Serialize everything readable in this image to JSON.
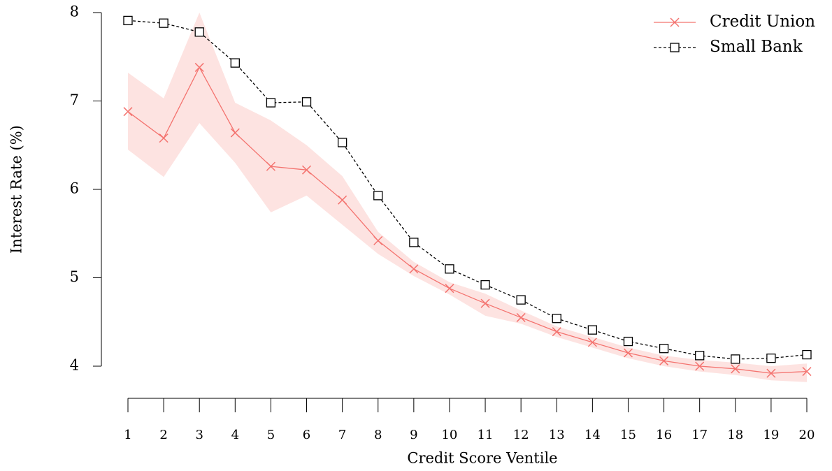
{
  "chart_data": {
    "type": "line",
    "x_label": "Credit Score Ventile",
    "y_label": "Interest Rate (%)",
    "x": [
      1,
      2,
      3,
      4,
      5,
      6,
      7,
      8,
      9,
      10,
      11,
      12,
      13,
      14,
      15,
      16,
      17,
      18,
      19,
      20
    ],
    "xlim": [
      1,
      20
    ],
    "xticks": [
      1,
      2,
      3,
      4,
      5,
      6,
      7,
      8,
      9,
      10,
      11,
      12,
      13,
      14,
      15,
      16,
      17,
      18,
      19,
      20
    ],
    "ylim": [
      4,
      8
    ],
    "yticks": [
      4,
      5,
      6,
      7,
      8
    ],
    "legend": "top-right",
    "series": [
      {
        "name": "Credit Union",
        "color": "#f4736f",
        "band_color": "#fde3e1",
        "marker": "x",
        "dash": false,
        "values": [
          6.88,
          6.58,
          7.38,
          6.64,
          6.26,
          6.22,
          5.88,
          5.42,
          5.1,
          4.88,
          4.71,
          4.55,
          4.39,
          4.27,
          4.15,
          4.06,
          4.0,
          3.97,
          3.92,
          3.94
        ],
        "upper": [
          7.32,
          7.03,
          8.0,
          6.98,
          6.78,
          6.5,
          6.15,
          5.52,
          5.18,
          4.95,
          4.82,
          4.63,
          4.45,
          4.33,
          4.21,
          4.12,
          4.07,
          4.04,
          4.0,
          4.03
        ],
        "lower": [
          6.45,
          6.14,
          6.75,
          6.3,
          5.74,
          5.93,
          5.6,
          5.27,
          5.02,
          4.81,
          4.57,
          4.48,
          4.33,
          4.21,
          4.09,
          4.0,
          3.94,
          3.9,
          3.84,
          3.82
        ]
      },
      {
        "name": "Small Bank",
        "color": "#000000",
        "marker": "square",
        "dash": true,
        "values": [
          7.91,
          7.88,
          7.78,
          7.43,
          6.98,
          6.99,
          6.53,
          5.93,
          5.4,
          5.1,
          4.92,
          4.75,
          4.54,
          4.41,
          4.28,
          4.2,
          4.12,
          4.08,
          4.09,
          4.13
        ]
      }
    ]
  }
}
